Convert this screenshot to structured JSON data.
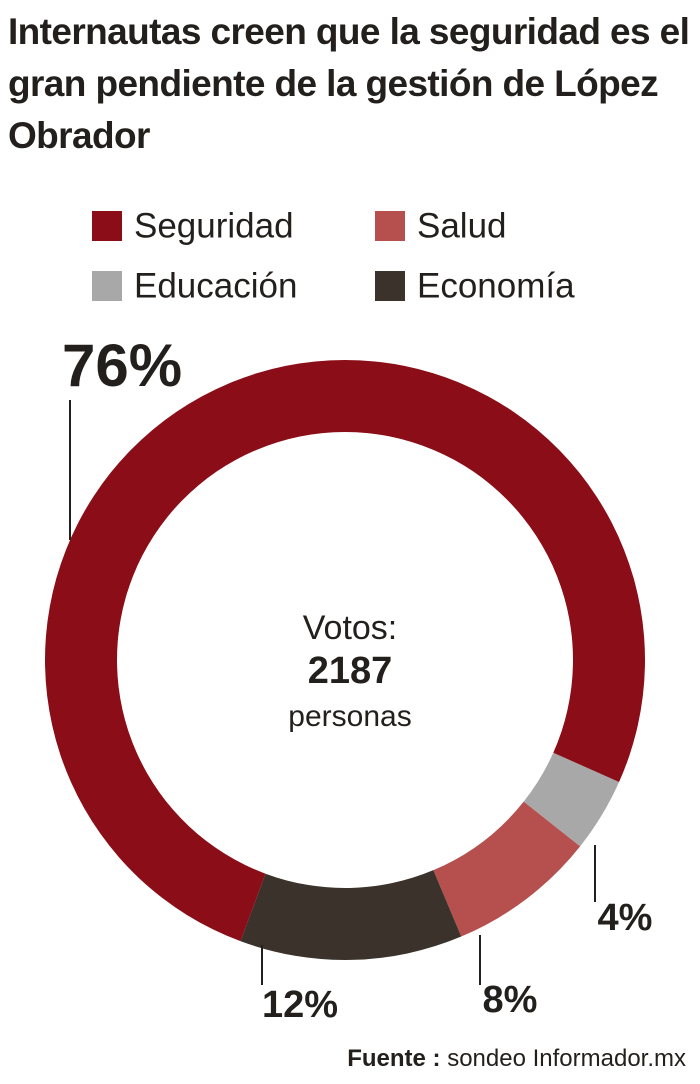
{
  "chart_data": {
    "type": "donut",
    "title": "Internautas creen que la seguridad es el gran pendiente de la gestión de López Obrador",
    "categories": [
      "Seguridad",
      "Salud",
      "Educación",
      "Economía"
    ],
    "values": [
      76,
      8,
      4,
      12
    ],
    "value_labels": [
      "76%",
      "8%",
      "4%",
      "12%"
    ],
    "colors": [
      "#8b0d18",
      "#b5504e",
      "#a8a8a8",
      "#3a322b"
    ],
    "center": {
      "label": "Votos:",
      "value": 2187,
      "unit": "personas"
    },
    "source": {
      "label": "Fuente :",
      "text": "sondeo Informador.mx"
    }
  }
}
